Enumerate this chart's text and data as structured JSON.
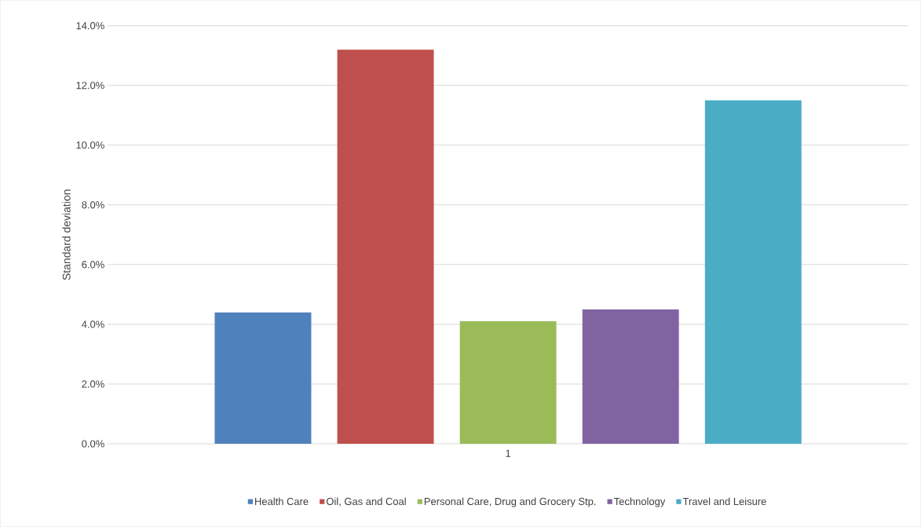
{
  "chart_data": {
    "type": "bar",
    "ylabel": "Standard deviation",
    "categories": [
      "1"
    ],
    "series": [
      {
        "name": "Health Care",
        "color": "#4f81bd",
        "values": [
          4.4
        ]
      },
      {
        "name": "Oil, Gas and Coal",
        "color": "#c0504d",
        "values": [
          13.2
        ]
      },
      {
        "name": "Personal Care, Drug and Grocery Stp.",
        "color": "#9bbb59",
        "values": [
          4.1
        ]
      },
      {
        "name": "Technology",
        "color": "#8064a2",
        "values": [
          4.5
        ]
      },
      {
        "name": "Travel and Leisure",
        "color": "#4bacc6",
        "values": [
          11.5
        ]
      }
    ],
    "ylim": [
      0,
      14
    ],
    "yticks": [
      {
        "value": 0,
        "label": "0.0%"
      },
      {
        "value": 2,
        "label": "2.0%"
      },
      {
        "value": 4,
        "label": "4.0%"
      },
      {
        "value": 6,
        "label": "6.0%"
      },
      {
        "value": 8,
        "label": "8.0%"
      },
      {
        "value": 10,
        "label": "10.0%"
      },
      {
        "value": 12,
        "label": "12.0%"
      },
      {
        "value": 14,
        "label": "14.0%"
      }
    ],
    "grid": "y",
    "legend": "bottom"
  }
}
